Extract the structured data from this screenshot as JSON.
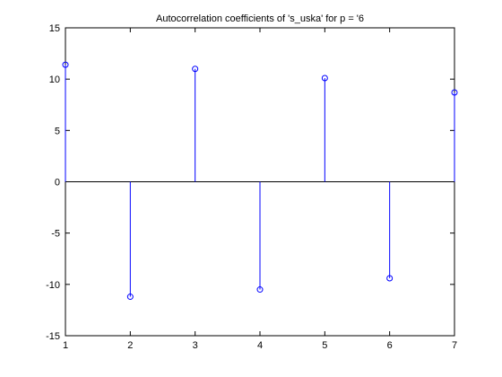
{
  "chart_data": {
    "type": "stem",
    "title": "Autocorrelation coefficients of 's_uska' for p = '6",
    "xlabel": "",
    "ylabel": "",
    "xlim": [
      1,
      7
    ],
    "ylim": [
      -15,
      15
    ],
    "x": [
      1,
      2,
      3,
      4,
      5,
      6,
      7
    ],
    "values": [
      11.4,
      -11.2,
      11.0,
      -10.5,
      10.1,
      -9.4,
      8.7
    ],
    "xticks": [
      "1",
      "2",
      "3",
      "4",
      "5",
      "6",
      "7"
    ],
    "yticks": [
      "-15",
      "-10",
      "-5",
      "0",
      "5",
      "10",
      "15"
    ],
    "baseline": 0,
    "marker": "circle",
    "grid": false,
    "colors": {
      "stem": "#0000ff",
      "axes": "#000000",
      "background": "#ffffff"
    }
  }
}
